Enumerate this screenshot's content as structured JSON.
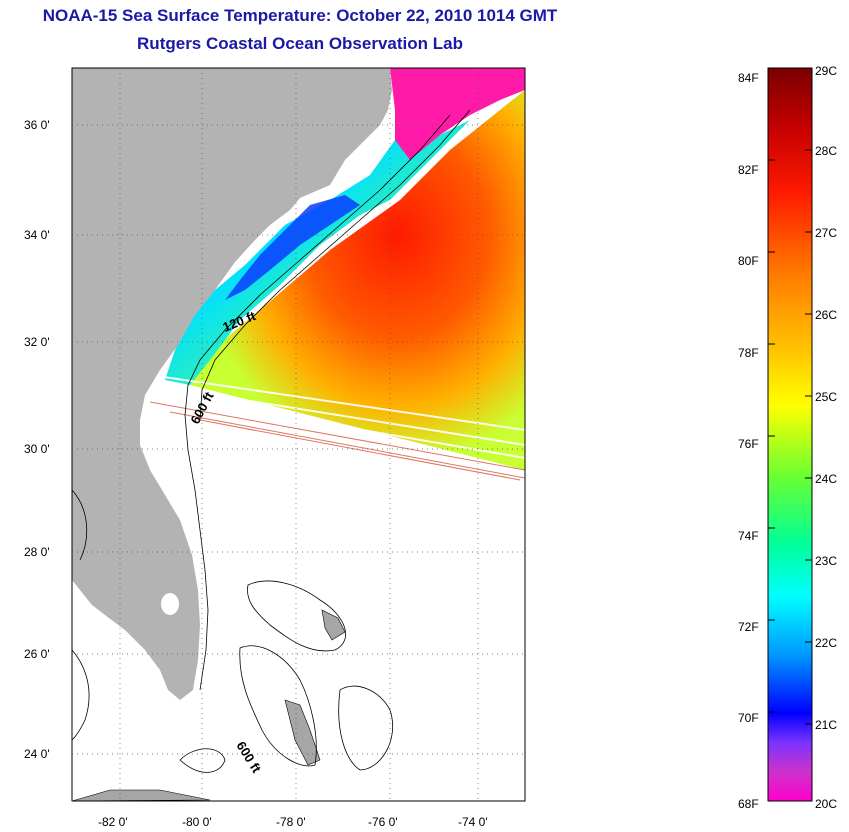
{
  "title": {
    "line1": "NOAA-15 Sea Surface Temperature:  October 22, 2010 1014 GMT",
    "line2": "Rutgers Coastal Ocean Observation Lab"
  },
  "map": {
    "lon_ticks": [
      "-82 0'",
      "-80 0'",
      "-78 0'",
      "-76 0'",
      "-74 0'"
    ],
    "lat_ticks": [
      "36 0'",
      "34 0'",
      "32 0'",
      "30 0'",
      "28 0'",
      "26 0'",
      "24 0'"
    ],
    "contour_labels": [
      "120 ft",
      "600 ft",
      "600 ft"
    ]
  },
  "colorbar": {
    "f_labels": [
      "84F",
      "82F",
      "80F",
      "78F",
      "76F",
      "74F",
      "72F",
      "70F",
      "68F"
    ],
    "c_labels": [
      "29C",
      "28C",
      "27C",
      "26C",
      "25C",
      "24C",
      "23C",
      "22C",
      "21C",
      "20C"
    ]
  },
  "colors": {
    "title": "#1a1aa6",
    "land": "#b3b3b3",
    "background": "#ffffff"
  }
}
